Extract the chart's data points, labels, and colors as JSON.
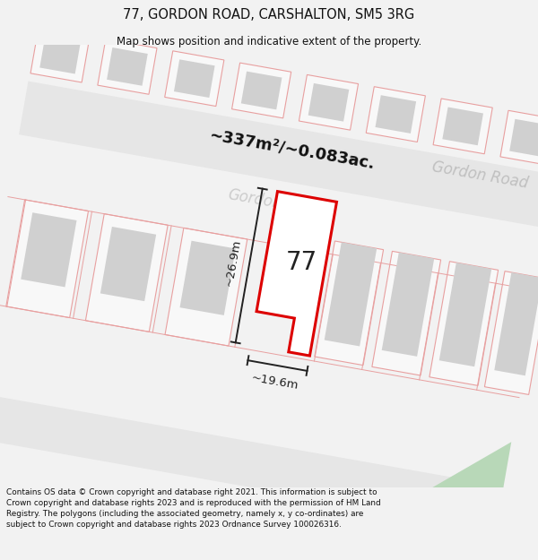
{
  "title": "77, GORDON ROAD, CARSHALTON, SM5 3RG",
  "subtitle": "Map shows position and indicative extent of the property.",
  "area_text": "~337m²/~0.083ac.",
  "width_label": "~19.6m",
  "height_label": "~26.9m",
  "number_label": "77",
  "gordon_road_label": "Gordon Road",
  "gordon_road_faded": "Gordon",
  "footer": "Contains OS data © Crown copyright and database right 2021. This information is subject to Crown copyright and database rights 2023 and is reproduced with the permission of HM Land Registry. The polygons (including the associated geometry, namely x, y co-ordinates) are subject to Crown copyright and database rights 2023 Ordnance Survey 100026316.",
  "bg_color": "#f2f2f2",
  "map_bg": "#ffffff",
  "road_fill": "#e6e6e6",
  "plot_outline": "#e8a0a0",
  "plot_fill": "#f8f8f8",
  "building_fill": "#d0d0d0",
  "prop_border": "#dd0000",
  "prop_fill": "#ffffff",
  "dim_color": "#222222",
  "road_text_color": "#c0c0c0",
  "title_color": "#111111",
  "footer_color": "#111111",
  "green_color": "#b8d8b8"
}
